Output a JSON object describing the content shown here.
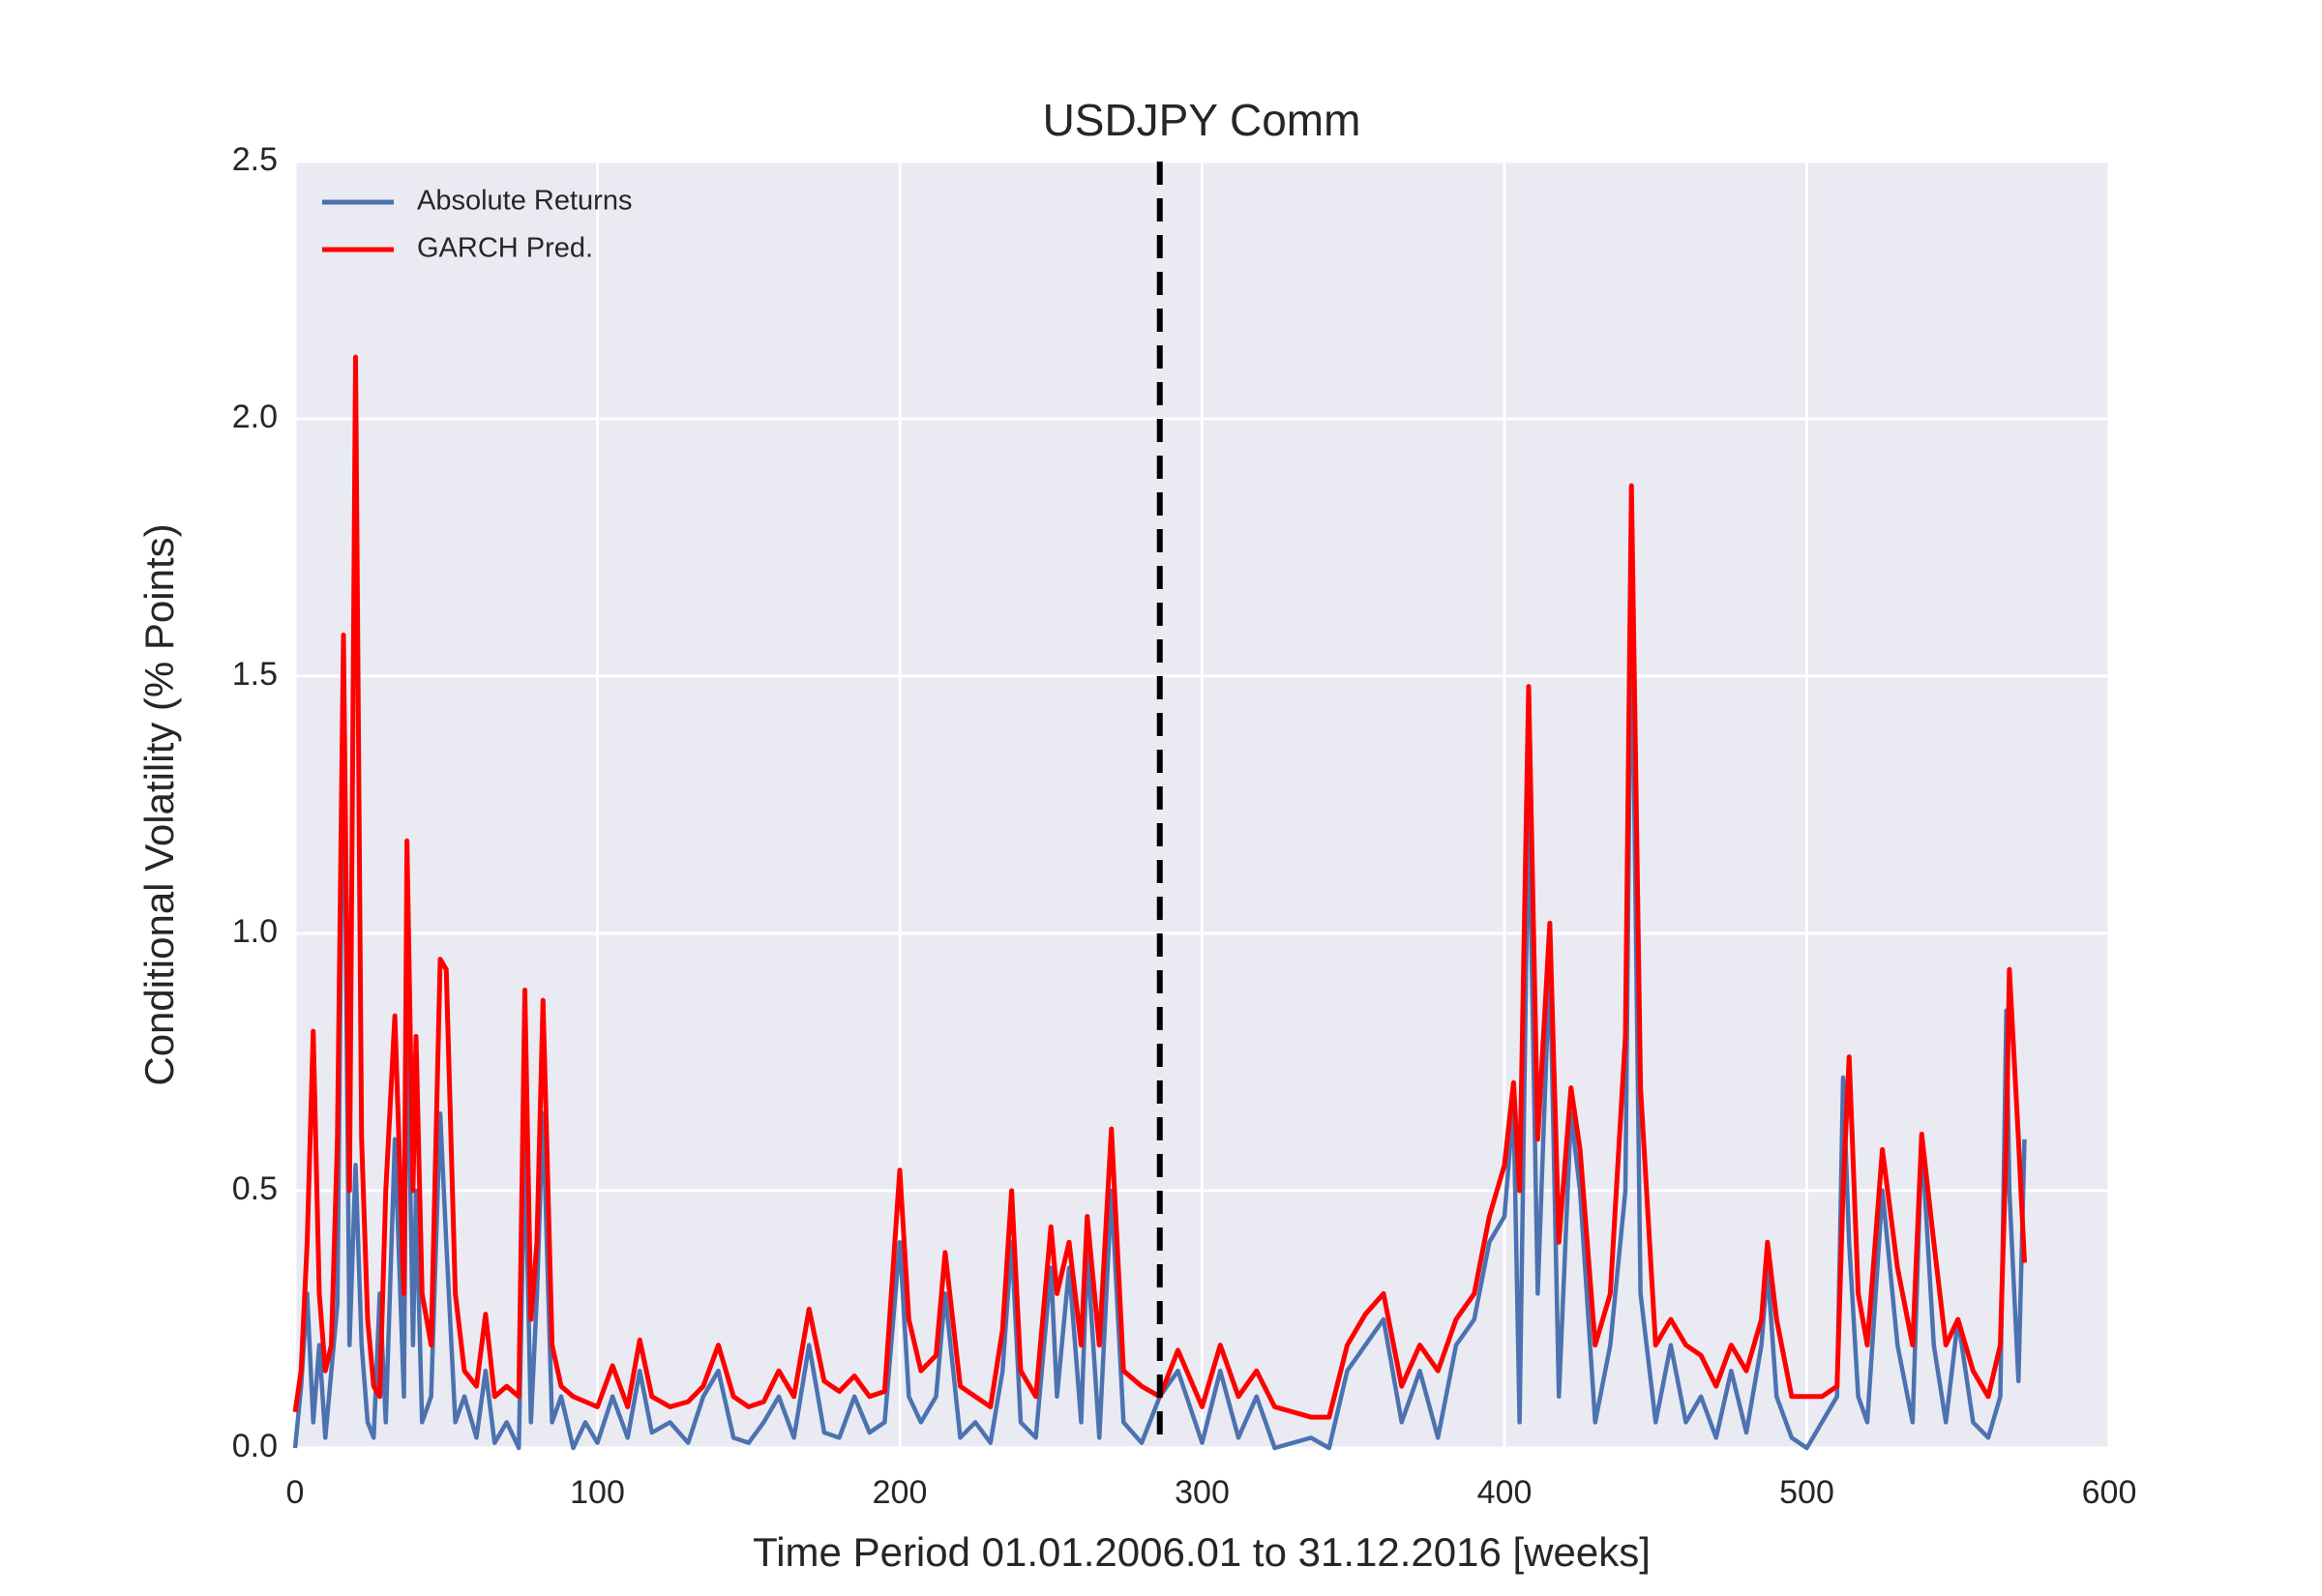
{
  "chart_data": {
    "type": "line",
    "title": "USDJPY Comm",
    "xlabel": "Time Period 01.01.2006.01 to 31.12.2016 [weeks]",
    "ylabel": "Conditional Volatility (% Points)",
    "x": [
      0,
      2,
      4,
      6,
      8,
      10,
      12,
      14,
      16,
      18,
      20,
      22,
      24,
      26,
      28,
      30,
      33,
      36,
      37,
      39,
      40,
      42,
      45,
      48,
      50,
      53,
      56,
      60,
      63,
      66,
      70,
      74,
      76,
      78,
      80,
      82,
      85,
      88,
      92,
      96,
      100,
      105,
      110,
      114,
      118,
      124,
      130,
      135,
      140,
      145,
      150,
      155,
      160,
      165,
      170,
      175,
      180,
      185,
      190,
      195,
      200,
      203,
      207,
      212,
      215,
      220,
      225,
      230,
      234,
      237,
      240,
      245,
      250,
      252,
      256,
      260,
      262,
      266,
      270,
      274,
      280,
      286,
      292,
      300,
      306,
      312,
      318,
      324,
      330,
      336,
      342,
      348,
      354,
      360,
      366,
      372,
      378,
      384,
      390,
      395,
      400,
      403,
      405,
      408,
      411,
      415,
      418,
      422,
      425,
      430,
      435,
      440,
      442,
      445,
      450,
      455,
      460,
      465,
      470,
      475,
      480,
      485,
      487,
      490,
      495,
      500,
      505,
      510,
      512,
      514,
      517,
      520,
      525,
      530,
      535,
      538,
      542,
      546,
      550,
      555,
      560,
      564,
      566,
      567,
      570,
      572
    ],
    "series": [
      {
        "name": "Absolute Returns",
        "color": "#4c72b0",
        "values": [
          0.0,
          0.12,
          0.3,
          0.05,
          0.2,
          0.02,
          0.15,
          0.28,
          1.5,
          0.2,
          0.55,
          0.2,
          0.05,
          0.02,
          0.3,
          0.05,
          0.6,
          0.1,
          0.9,
          0.2,
          0.5,
          0.05,
          0.1,
          0.65,
          0.4,
          0.05,
          0.1,
          0.02,
          0.15,
          0.01,
          0.05,
          0.0,
          0.6,
          0.05,
          0.3,
          0.65,
          0.05,
          0.1,
          0.0,
          0.05,
          0.01,
          0.1,
          0.02,
          0.15,
          0.03,
          0.05,
          0.01,
          0.1,
          0.15,
          0.02,
          0.01,
          0.05,
          0.1,
          0.02,
          0.2,
          0.03,
          0.02,
          0.1,
          0.03,
          0.05,
          0.4,
          0.1,
          0.05,
          0.1,
          0.3,
          0.02,
          0.05,
          0.01,
          0.15,
          0.4,
          0.05,
          0.02,
          0.35,
          0.1,
          0.35,
          0.05,
          0.38,
          0.02,
          0.5,
          0.05,
          0.01,
          0.1,
          0.15,
          0.01,
          0.15,
          0.02,
          0.1,
          0.0,
          0.01,
          0.02,
          0.0,
          0.15,
          0.2,
          0.25,
          0.05,
          0.15,
          0.02,
          0.2,
          0.25,
          0.4,
          0.45,
          0.67,
          0.05,
          1.28,
          0.3,
          0.95,
          0.1,
          0.65,
          0.5,
          0.05,
          0.2,
          0.5,
          1.69,
          0.3,
          0.05,
          0.2,
          0.05,
          0.1,
          0.02,
          0.15,
          0.03,
          0.2,
          0.35,
          0.1,
          0.02,
          0.0,
          0.05,
          0.1,
          0.72,
          0.4,
          0.1,
          0.05,
          0.5,
          0.2,
          0.05,
          0.6,
          0.2,
          0.05,
          0.25,
          0.05,
          0.02,
          0.1,
          0.85,
          0.5,
          0.13,
          0.6
        ]
      },
      {
        "name": "GARCH Pred.",
        "color": "#ff0000",
        "values": [
          0.07,
          0.15,
          0.4,
          0.81,
          0.3,
          0.15,
          0.2,
          0.6,
          1.58,
          0.5,
          2.12,
          0.6,
          0.25,
          0.12,
          0.1,
          0.5,
          0.84,
          0.3,
          1.18,
          0.5,
          0.8,
          0.3,
          0.2,
          0.95,
          0.93,
          0.3,
          0.15,
          0.12,
          0.26,
          0.1,
          0.12,
          0.1,
          0.89,
          0.25,
          0.4,
          0.87,
          0.2,
          0.12,
          0.1,
          0.09,
          0.08,
          0.16,
          0.08,
          0.21,
          0.1,
          0.08,
          0.09,
          0.12,
          0.2,
          0.1,
          0.08,
          0.09,
          0.15,
          0.1,
          0.27,
          0.13,
          0.11,
          0.14,
          0.1,
          0.11,
          0.54,
          0.25,
          0.15,
          0.18,
          0.38,
          0.12,
          0.1,
          0.08,
          0.23,
          0.5,
          0.15,
          0.1,
          0.43,
          0.3,
          0.4,
          0.2,
          0.45,
          0.2,
          0.62,
          0.15,
          0.12,
          0.1,
          0.19,
          0.08,
          0.2,
          0.1,
          0.15,
          0.08,
          0.07,
          0.06,
          0.06,
          0.2,
          0.26,
          0.3,
          0.12,
          0.2,
          0.15,
          0.25,
          0.3,
          0.45,
          0.55,
          0.71,
          0.5,
          1.48,
          0.6,
          1.02,
          0.4,
          0.7,
          0.58,
          0.2,
          0.3,
          0.8,
          1.87,
          0.7,
          0.2,
          0.25,
          0.2,
          0.18,
          0.12,
          0.2,
          0.15,
          0.25,
          0.4,
          0.25,
          0.1,
          0.1,
          0.1,
          0.12,
          0.5,
          0.76,
          0.3,
          0.2,
          0.58,
          0.35,
          0.2,
          0.61,
          0.4,
          0.2,
          0.25,
          0.15,
          0.1,
          0.2,
          0.6,
          0.93,
          0.6,
          0.36
        ]
      }
    ],
    "vline": 286,
    "xlim": [
      0,
      600
    ],
    "xticks": [
      0,
      100,
      200,
      300,
      400,
      500,
      600
    ],
    "ylim": [
      0,
      2.5
    ],
    "yticks": [
      {
        "value": 0,
        "label": "0.0"
      },
      0.5,
      {
        "value": 1,
        "label": "1.0"
      },
      1.5,
      {
        "value": 2,
        "label": "2.0"
      },
      2.5
    ],
    "grid": true,
    "legend": "upper left"
  }
}
